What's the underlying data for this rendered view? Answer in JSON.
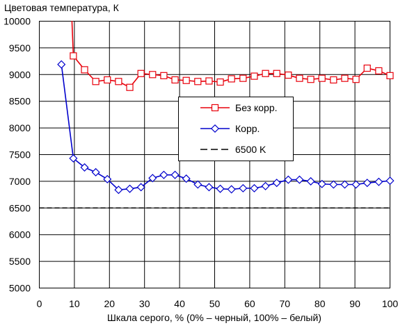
{
  "chart_data": {
    "type": "line",
    "title": "Цветовая температура, К",
    "xlabel": "Шкала серого, % (0% – черный, 100% – белый)",
    "ylabel": "",
    "xlim": [
      0,
      100
    ],
    "ylim": [
      5000,
      10000
    ],
    "x_ticks": [
      "0",
      "10",
      "20",
      "30",
      "40",
      "50",
      "60",
      "70",
      "80",
      "90",
      "100"
    ],
    "y_ticks": [
      "5000",
      "5500",
      "6000",
      "6500",
      "7000",
      "7500",
      "8000",
      "8500",
      "9000",
      "9500",
      "10000"
    ],
    "grid": true,
    "legend_position": "center-right",
    "series": [
      {
        "name": "Без корр.",
        "color": "#e8000b",
        "marker": "square",
        "x": [
          6.3,
          9.7,
          12.9,
          16.1,
          19.4,
          22.6,
          25.8,
          29.0,
          32.3,
          35.5,
          38.7,
          41.9,
          45.2,
          48.4,
          51.6,
          54.8,
          58.1,
          61.3,
          64.5,
          67.7,
          71.0,
          74.2,
          77.4,
          80.6,
          83.9,
          87.1,
          90.3,
          93.5,
          96.8,
          100
        ],
        "y": [
          15000,
          9350,
          9090,
          8870,
          8900,
          8870,
          8760,
          9020,
          9000,
          8980,
          8900,
          8890,
          8870,
          8880,
          8860,
          8920,
          8930,
          8970,
          9020,
          9020,
          8990,
          8930,
          8910,
          8930,
          8900,
          8930,
          8910,
          9120,
          9070,
          8980
        ]
      },
      {
        "name": "Корр.",
        "color": "#0000cc",
        "marker": "diamond",
        "x": [
          6.3,
          9.7,
          12.9,
          16.1,
          19.4,
          22.6,
          25.8,
          29.0,
          32.3,
          35.5,
          38.7,
          41.9,
          45.2,
          48.4,
          51.6,
          54.8,
          58.1,
          61.3,
          64.5,
          67.7,
          71.0,
          74.2,
          77.4,
          80.6,
          83.9,
          87.1,
          90.3,
          93.5,
          96.8,
          100
        ],
        "y": [
          9190,
          7430,
          7260,
          7170,
          7040,
          6840,
          6860,
          6890,
          7060,
          7120,
          7120,
          7050,
          6940,
          6890,
          6860,
          6850,
          6870,
          6870,
          6910,
          6970,
          7030,
          7030,
          7000,
          6950,
          6940,
          6940,
          6940,
          6970,
          6990,
          7010
        ]
      },
      {
        "name": "6500 K",
        "color": "#000000",
        "marker": "none",
        "dashed": true,
        "x": [
          0,
          100
        ],
        "y": [
          6500,
          6500
        ]
      }
    ]
  }
}
